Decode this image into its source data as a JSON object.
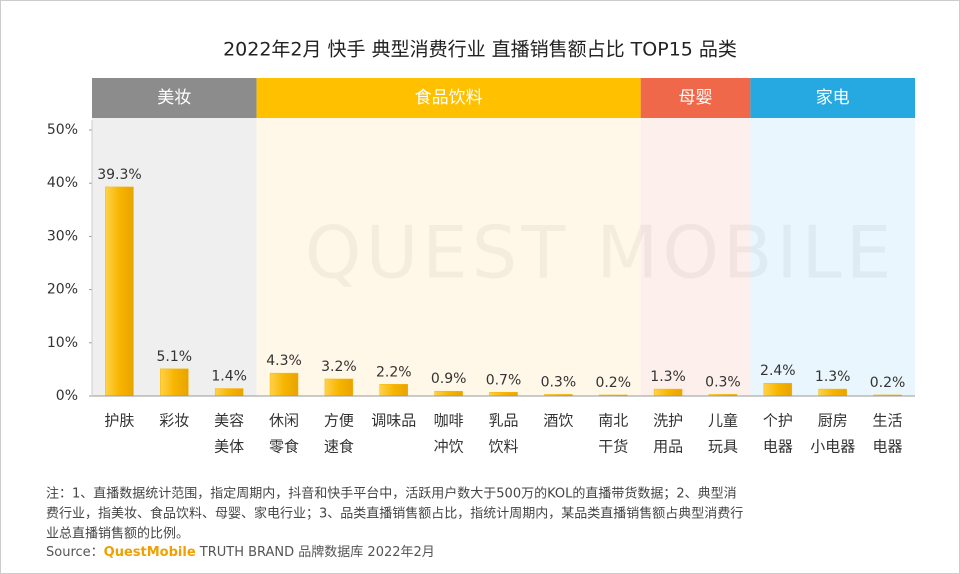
{
  "chart_data": {
    "type": "bar",
    "title": "2022年2月 快手 典型消费行业 直播销售额占比 TOP15 品类",
    "watermark": "QUEST MOBILE",
    "bar_color": "#f7b500",
    "ylim": [
      0,
      50
    ],
    "yticks": [
      {
        "value": 0,
        "label": "0%"
      },
      {
        "value": 10,
        "label": "10%"
      },
      {
        "value": 20,
        "label": "20%"
      },
      {
        "value": 30,
        "label": "30%"
      },
      {
        "value": 40,
        "label": "40%"
      },
      {
        "value": 50,
        "label": "50%"
      }
    ],
    "groups": [
      {
        "name": "美妆",
        "color": "#8c8c8c",
        "background": "#efefef",
        "categories": [
          [
            "护肤"
          ],
          [
            "彩妆"
          ],
          [
            "美容",
            "美体"
          ]
        ],
        "values": [
          39.3,
          5.1,
          1.4
        ],
        "value_labels": [
          "39.3%",
          "5.1%",
          "1.4%"
        ]
      },
      {
        "name": "食品饮料",
        "color": "#ffc000",
        "background": "#fff8e8",
        "categories": [
          [
            "休闲",
            "零食"
          ],
          [
            "方便",
            "速食"
          ],
          [
            "调味品"
          ],
          [
            "咖啡",
            "冲饮"
          ],
          [
            "乳品",
            "饮料"
          ],
          [
            "酒饮"
          ],
          [
            "南北",
            "干货"
          ]
        ],
        "values": [
          4.3,
          3.2,
          2.2,
          0.9,
          0.7,
          0.3,
          0.2
        ],
        "value_labels": [
          "4.3%",
          "3.2%",
          "2.2%",
          "0.9%",
          "0.7%",
          "0.3%",
          "0.2%"
        ]
      },
      {
        "name": "母婴",
        "color": "#f0684a",
        "background": "#fdefeb",
        "categories": [
          [
            "洗护",
            "用品"
          ],
          [
            "儿童",
            "玩具"
          ]
        ],
        "values": [
          1.3,
          0.3
        ],
        "value_labels": [
          "1.3%",
          "0.3%"
        ]
      },
      {
        "name": "家电",
        "color": "#25a9e0",
        "background": "#e9f6fd",
        "categories": [
          [
            "个护",
            "电器"
          ],
          [
            "厨房",
            "小电器"
          ],
          [
            "生活",
            "电器"
          ]
        ],
        "values": [
          2.4,
          1.3,
          0.2
        ],
        "value_labels": [
          "2.4%",
          "1.3%",
          "0.2%"
        ]
      }
    ],
    "notes": [
      "注：1、直播数据统计范围，指定周期内，抖音和快手平台中，活跃用户数大于500万的KOL的直播带货数据；2、典型消",
      "费行业，指美妆、食品饮料、母婴、家电行业；3、品类直播销售额占比，指统计周期内，某品类直播销售额占典型消费行",
      "业总直播销售额的比例。"
    ],
    "source": {
      "label": "Source：",
      "brand": "QuestMobile",
      "rest": " TRUTH BRAND 品牌数据库 2022年2月"
    }
  }
}
